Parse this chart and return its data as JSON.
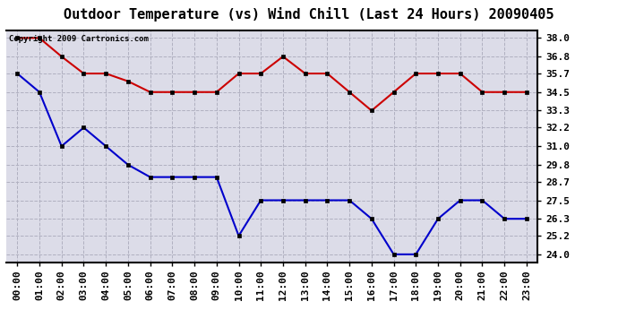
{
  "title": "Outdoor Temperature (vs) Wind Chill (Last 24 Hours) 20090405",
  "copyright": "Copyright 2009 Cartronics.com",
  "hours": [
    "00:00",
    "01:00",
    "02:00",
    "03:00",
    "04:00",
    "05:00",
    "06:00",
    "07:00",
    "08:00",
    "09:00",
    "10:00",
    "11:00",
    "12:00",
    "13:00",
    "14:00",
    "15:00",
    "16:00",
    "17:00",
    "18:00",
    "19:00",
    "20:00",
    "21:00",
    "22:00",
    "23:00"
  ],
  "temp": [
    35.7,
    34.5,
    31.0,
    32.2,
    31.0,
    29.8,
    29.0,
    29.0,
    29.0,
    29.0,
    25.2,
    27.5,
    27.5,
    27.5,
    27.5,
    27.5,
    26.3,
    24.0,
    24.0,
    26.3,
    27.5,
    27.5,
    26.3,
    26.3
  ],
  "wind_chill": [
    38.0,
    38.0,
    36.8,
    35.7,
    35.7,
    35.2,
    34.5,
    34.5,
    34.5,
    34.5,
    35.7,
    35.7,
    36.8,
    35.7,
    35.7,
    34.5,
    33.3,
    34.5,
    35.7,
    35.7,
    35.7,
    34.5,
    34.5,
    34.5
  ],
  "temp_color": "#0000cc",
  "wind_chill_color": "#cc0000",
  "bg_color": "#ffffff",
  "plot_bg_color": "#dcdce8",
  "grid_color": "#b0b0c0",
  "border_color": "#000000",
  "ylim_min": 23.5,
  "ylim_max": 38.5,
  "yticks": [
    24.0,
    25.2,
    26.3,
    27.5,
    28.7,
    29.8,
    31.0,
    32.2,
    33.3,
    34.5,
    35.7,
    36.8,
    38.0
  ],
  "title_fontsize": 11,
  "tick_fontsize": 8,
  "copyright_fontsize": 6.5
}
